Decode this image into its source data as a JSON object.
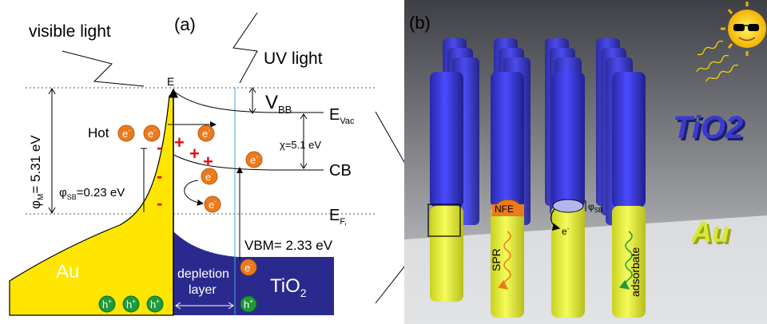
{
  "panel_a": {
    "label": "(a)",
    "visible_light": "visible light",
    "uv_light": "UV light",
    "energy_axis": "E",
    "vbb": "V",
    "vbb_sub": "BB",
    "evac": "E",
    "evac_sub": "Vac",
    "chi": "χ=5.1 eV",
    "cb": "CB",
    "ef": "E",
    "ef_sub": "F,",
    "hot": "Hot",
    "phi_m": "φ",
    "phi_m_sub": "M",
    "phi_m_val": "= 5.31 eV",
    "phi_sb": "φ",
    "phi_sb_sub": "SB",
    "phi_sb_val": "=0.23 eV",
    "vbm": "VBM= 2.33 eV",
    "au": "Au",
    "depletion_line1": "depletion",
    "depletion_line2": "layer",
    "tio2": "TiO",
    "tio2_sub": "2",
    "electron": "e",
    "electron_sup": "-",
    "hole": "h",
    "hole_sup": "+",
    "plus": "+",
    "minus": "-"
  },
  "panel_b": {
    "label": "(b)",
    "tio2_text": "TiO2",
    "au_text": "Au",
    "nfe": "NFE",
    "spr": "SPR",
    "adsorbate": "adsorbate",
    "phi_sb": "φ",
    "phi_sb_sub": "SB",
    "electron": "e",
    "electron_sup": "-"
  },
  "colors": {
    "au_yellow": "#ffe600",
    "tio2_blue": "#2a2a8e",
    "electron_orange": "#ec7a1c",
    "hole_green": "#1f9a3a",
    "charge_red": "#e01010",
    "rod_blue": "#3a3ad6",
    "rod_yellow": "#e8f23a"
  }
}
